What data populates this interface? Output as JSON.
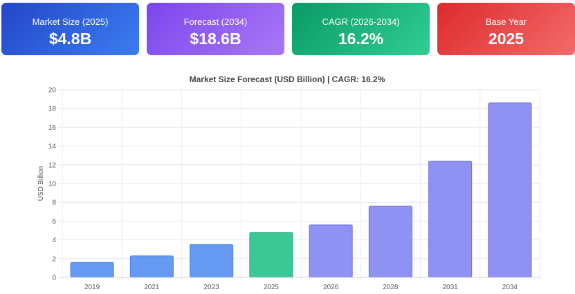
{
  "cards": [
    {
      "label": "Market Size (2025)",
      "value": "$4.8B",
      "color": "#2f5fe0"
    },
    {
      "label": "Forecast (2034)",
      "value": "$18.6B",
      "color": "#9160f1"
    },
    {
      "label": "CAGR (2026-2034)",
      "value": "16.2%",
      "color": "#1fb47e"
    },
    {
      "label": "Base Year",
      "value": "2025",
      "color": "#e94a4b"
    }
  ],
  "chart_data": {
    "type": "bar",
    "title": "Market Size Forecast (USD Billion) | CAGR: 16.2%",
    "xlabel": "",
    "ylabel": "USD Billion",
    "categories": [
      "2019",
      "2021",
      "2023",
      "2025",
      "2026",
      "2028",
      "2031",
      "2034"
    ],
    "values": [
      1.6,
      2.3,
      3.5,
      4.8,
      5.6,
      7.6,
      12.4,
      18.6
    ],
    "bar_groups": [
      "historical",
      "historical",
      "historical",
      "base",
      "forecast",
      "forecast",
      "forecast",
      "forecast"
    ],
    "colors": {
      "historical": "#6599f2",
      "base": "#3cc896",
      "forecast": "#8f91f3",
      "historical_border": "#4a82ec",
      "base_border": "#20b07e",
      "forecast_border": "#6e6fe6"
    },
    "ylim": [
      0,
      20
    ],
    "yticks": [
      "0",
      "2",
      "4",
      "6",
      "8",
      "10",
      "12",
      "14",
      "16",
      "18",
      "20"
    ],
    "grid": true
  }
}
